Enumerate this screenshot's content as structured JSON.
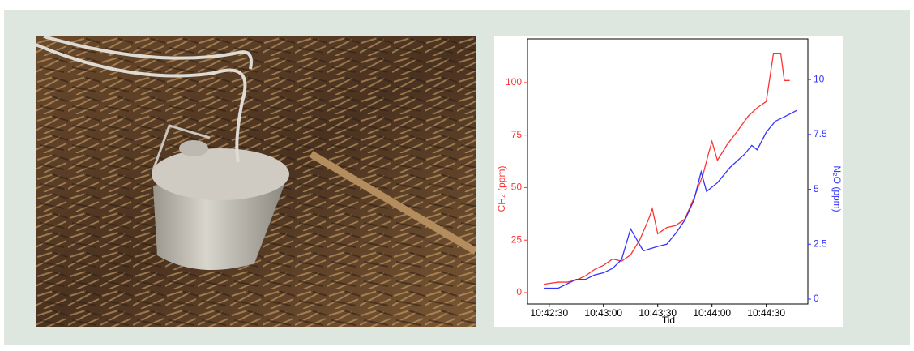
{
  "chart_data": {
    "type": "line",
    "xlabel": "Tid",
    "ylabel": "CH₄ (ppm)",
    "y2label": "N₂O (ppm)",
    "xlim": [
      "10:42:18",
      "10:44:53"
    ],
    "xticks": [
      "10:42:30",
      "10:43:00",
      "10:43:30",
      "10:44:00",
      "10:44:30"
    ],
    "ylim": [
      -5.4,
      120.8
    ],
    "yticks": [
      0,
      25,
      50,
      75,
      100
    ],
    "y2lim": [
      -0.22,
      11.85
    ],
    "y2ticks": [
      0,
      2.5,
      5,
      7.5,
      10
    ],
    "series": [
      {
        "name": "CH₄",
        "color": "#ff3333",
        "x": [
          "10:42:27",
          "10:42:35",
          "10:42:40",
          "10:42:45",
          "10:42:50",
          "10:42:55",
          "10:43:00",
          "10:43:05",
          "10:43:10",
          "10:43:15",
          "10:43:20",
          "10:43:25",
          "10:43:27",
          "10:43:30",
          "10:43:35",
          "10:43:40",
          "10:43:45",
          "10:43:50",
          "10:43:55",
          "10:43:58",
          "10:44:00",
          "10:44:03",
          "10:44:08",
          "10:44:15",
          "10:44:20",
          "10:44:25",
          "10:44:30",
          "10:44:34",
          "10:44:38",
          "10:44:40",
          "10:44:43"
        ],
        "values": [
          4,
          5,
          5,
          6,
          8,
          11,
          13,
          16,
          15,
          18,
          25,
          35,
          40,
          28,
          31,
          32,
          35,
          45,
          56,
          66,
          72,
          63,
          70,
          78,
          84,
          88,
          91,
          114,
          114,
          101,
          101
        ]
      },
      {
        "name": "N₂O",
        "color": "#3333ff",
        "axis": "y2",
        "x": [
          "10:42:27",
          "10:42:35",
          "10:42:40",
          "10:42:45",
          "10:42:50",
          "10:42:55",
          "10:43:00",
          "10:43:05",
          "10:43:10",
          "10:43:15",
          "10:43:22",
          "10:43:30",
          "10:43:35",
          "10:43:40",
          "10:43:45",
          "10:43:50",
          "10:43:54",
          "10:43:57",
          "10:44:03",
          "10:44:10",
          "10:44:18",
          "10:44:22",
          "10:44:25",
          "10:44:30",
          "10:44:35",
          "10:44:40",
          "10:44:47"
        ],
        "values": [
          0.5,
          0.5,
          0.7,
          0.9,
          0.9,
          1.1,
          1.2,
          1.4,
          1.8,
          3.2,
          2.2,
          2.4,
          2.5,
          3.0,
          3.6,
          4.5,
          5.8,
          4.9,
          5.3,
          6.0,
          6.6,
          7.0,
          6.8,
          7.6,
          8.1,
          8.3,
          8.6
        ]
      }
    ]
  }
}
